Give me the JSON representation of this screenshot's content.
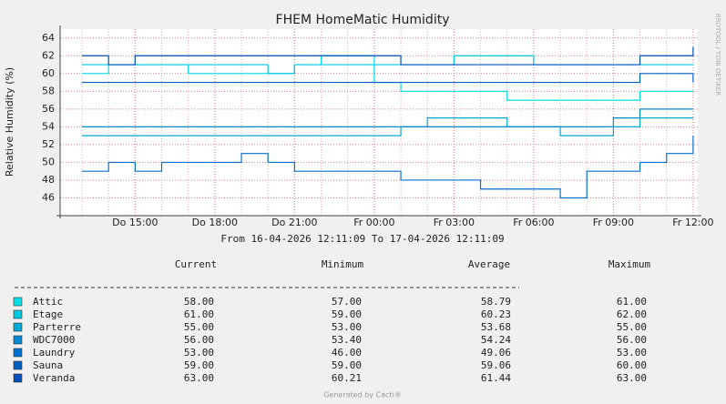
{
  "chart_data": {
    "type": "line",
    "title": "FHEM HomeMatic Humidity",
    "y_label": "Relative Humidity (%)",
    "subtitle": "From 16-04-2026 12:11:09 To 17-04-2026 12:11:09",
    "watermark": "RRDTOOL / TOBI OETIKER",
    "footer": "Generated by Cacti®",
    "x": [
      "Do 13:00",
      "Do 14:00",
      "Do 15:00",
      "Do 16:00",
      "Do 17:00",
      "Do 18:00",
      "Do 19:00",
      "Do 20:00",
      "Do 21:00",
      "Do 22:00",
      "Do 23:00",
      "Fr 00:00",
      "Fr 01:00",
      "Fr 02:00",
      "Fr 03:00",
      "Fr 04:00",
      "Fr 05:00",
      "Fr 06:00",
      "Fr 07:00",
      "Fr 08:00",
      "Fr 09:00",
      "Fr 10:00",
      "Fr 11:00",
      "Fr 12:00"
    ],
    "xticks": [
      "Do 15:00",
      "Do 18:00",
      "Do 21:00",
      "Fr 00:00",
      "Fr 03:00",
      "Fr 06:00",
      "Fr 09:00",
      "Fr 12:00"
    ],
    "ylim": [
      44,
      65
    ],
    "yticks": [
      46,
      48,
      50,
      52,
      54,
      56,
      58,
      60,
      62,
      64
    ],
    "grid": true,
    "stat_headers": [
      "Current",
      "Minimum",
      "Average",
      "Maximum"
    ],
    "series": [
      {
        "name": "Attic",
        "color": "#00e0e8",
        "values": [
          60,
          61,
          61,
          61,
          60,
          60,
          60,
          60,
          61,
          62,
          62,
          59,
          58,
          58,
          58,
          58,
          57,
          57,
          57,
          57,
          57,
          58,
          58,
          58
        ],
        "stats": [
          "58.00",
          "57.00",
          "58.79",
          "61.00"
        ]
      },
      {
        "name": "Etage",
        "color": "#00c8e0",
        "values": [
          61,
          61,
          61,
          61,
          61,
          61,
          61,
          60,
          61,
          61,
          61,
          61,
          61,
          61,
          62,
          62,
          62,
          61,
          61,
          61,
          61,
          61,
          61,
          61
        ],
        "stats": [
          "61.00",
          "59.00",
          "60.23",
          "62.00"
        ]
      },
      {
        "name": "Parterre",
        "color": "#00a8d8",
        "values": [
          53,
          53,
          53,
          53,
          53,
          53,
          53,
          53,
          53,
          53,
          53,
          53,
          54,
          55,
          55,
          55,
          54,
          54,
          53,
          53,
          54,
          55,
          55,
          55
        ],
        "stats": [
          "55.00",
          "53.00",
          "53.68",
          "55.00"
        ]
      },
      {
        "name": "WDC7000",
        "color": "#0088d0",
        "values": [
          54,
          54,
          54,
          54,
          54,
          54,
          54,
          54,
          54,
          54,
          54,
          54,
          54,
          54,
          54,
          54,
          54,
          54,
          54,
          54,
          55,
          56,
          56,
          56
        ],
        "stats": [
          "56.00",
          "53.40",
          "54.24",
          "56.00"
        ]
      },
      {
        "name": "Laundry",
        "color": "#0070d0",
        "values": [
          49,
          50,
          49,
          50,
          50,
          50,
          51,
          50,
          49,
          49,
          49,
          49,
          48,
          48,
          48,
          47,
          47,
          47,
          46,
          49,
          49,
          50,
          51,
          53
        ],
        "stats": [
          "53.00",
          "46.00",
          "49.06",
          "53.00"
        ]
      },
      {
        "name": "Sauna",
        "color": "#0060c0",
        "values": [
          59,
          59,
          59,
          59,
          59,
          59,
          59,
          59,
          59,
          59,
          59,
          59,
          59,
          59,
          59,
          59,
          59,
          59,
          59,
          59,
          59,
          60,
          60,
          59
        ],
        "stats": [
          "59.00",
          "59.00",
          "59.06",
          "60.00"
        ]
      },
      {
        "name": "Veranda",
        "color": "#0050b8",
        "values": [
          62,
          61,
          62,
          62,
          62,
          62,
          62,
          62,
          62,
          62,
          62,
          62,
          61,
          61,
          61,
          61,
          61,
          61,
          61,
          61,
          61,
          62,
          62,
          63
        ],
        "stats": [
          "63.00",
          "60.21",
          "61.44",
          "63.00"
        ]
      }
    ]
  }
}
